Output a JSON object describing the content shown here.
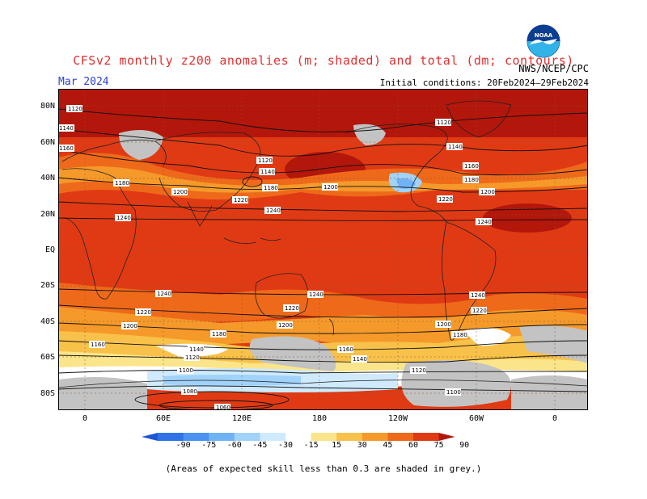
{
  "title": "CFSv2 monthly z200 anomalies (m; shaded) and total (dm; contours)",
  "month": "Mar 2024",
  "org": "NWS/NCEP/CPC",
  "initial_conditions": "Initial conditions: 20Feb2024–29Feb2024",
  "footer": "(Areas of expected skill less than 0.3 are shaded in grey.)",
  "logo": {
    "name": "noaa-logo",
    "text": "NOAA",
    "colors": [
      "#0b3d91",
      "#32b3e8"
    ]
  },
  "lat_labels": [
    "80N",
    "60N",
    "40N",
    "20N",
    "EQ",
    "20S",
    "40S",
    "60S",
    "80S"
  ],
  "lon_labels": [
    "0",
    "60E",
    "120E",
    "180",
    "120W",
    "60W",
    "0"
  ],
  "colorbar": {
    "labels": [
      "-90",
      "-75",
      "-60",
      "-45",
      "-30",
      "-15",
      "15",
      "30",
      "45",
      "60",
      "75",
      "90"
    ],
    "colors": [
      "#1e56d6",
      "#2f73e6",
      "#4a93f0",
      "#6fb3f5",
      "#a0d2fa",
      "#cfeafc",
      "#ffffff",
      "#fbe58a",
      "#f8c24a",
      "#f59a2a",
      "#ee6a1a",
      "#e03a14",
      "#b3160b"
    ]
  },
  "contour_labels": [
    "1120",
    "1140",
    "1160",
    "1180",
    "1200",
    "1220",
    "1240",
    "1080",
    "1100",
    "1060"
  ],
  "colors": {
    "title": "#e03030",
    "month": "#2b3fd0",
    "grey_mask": "#c3c3c3",
    "coast": "#222222"
  }
}
